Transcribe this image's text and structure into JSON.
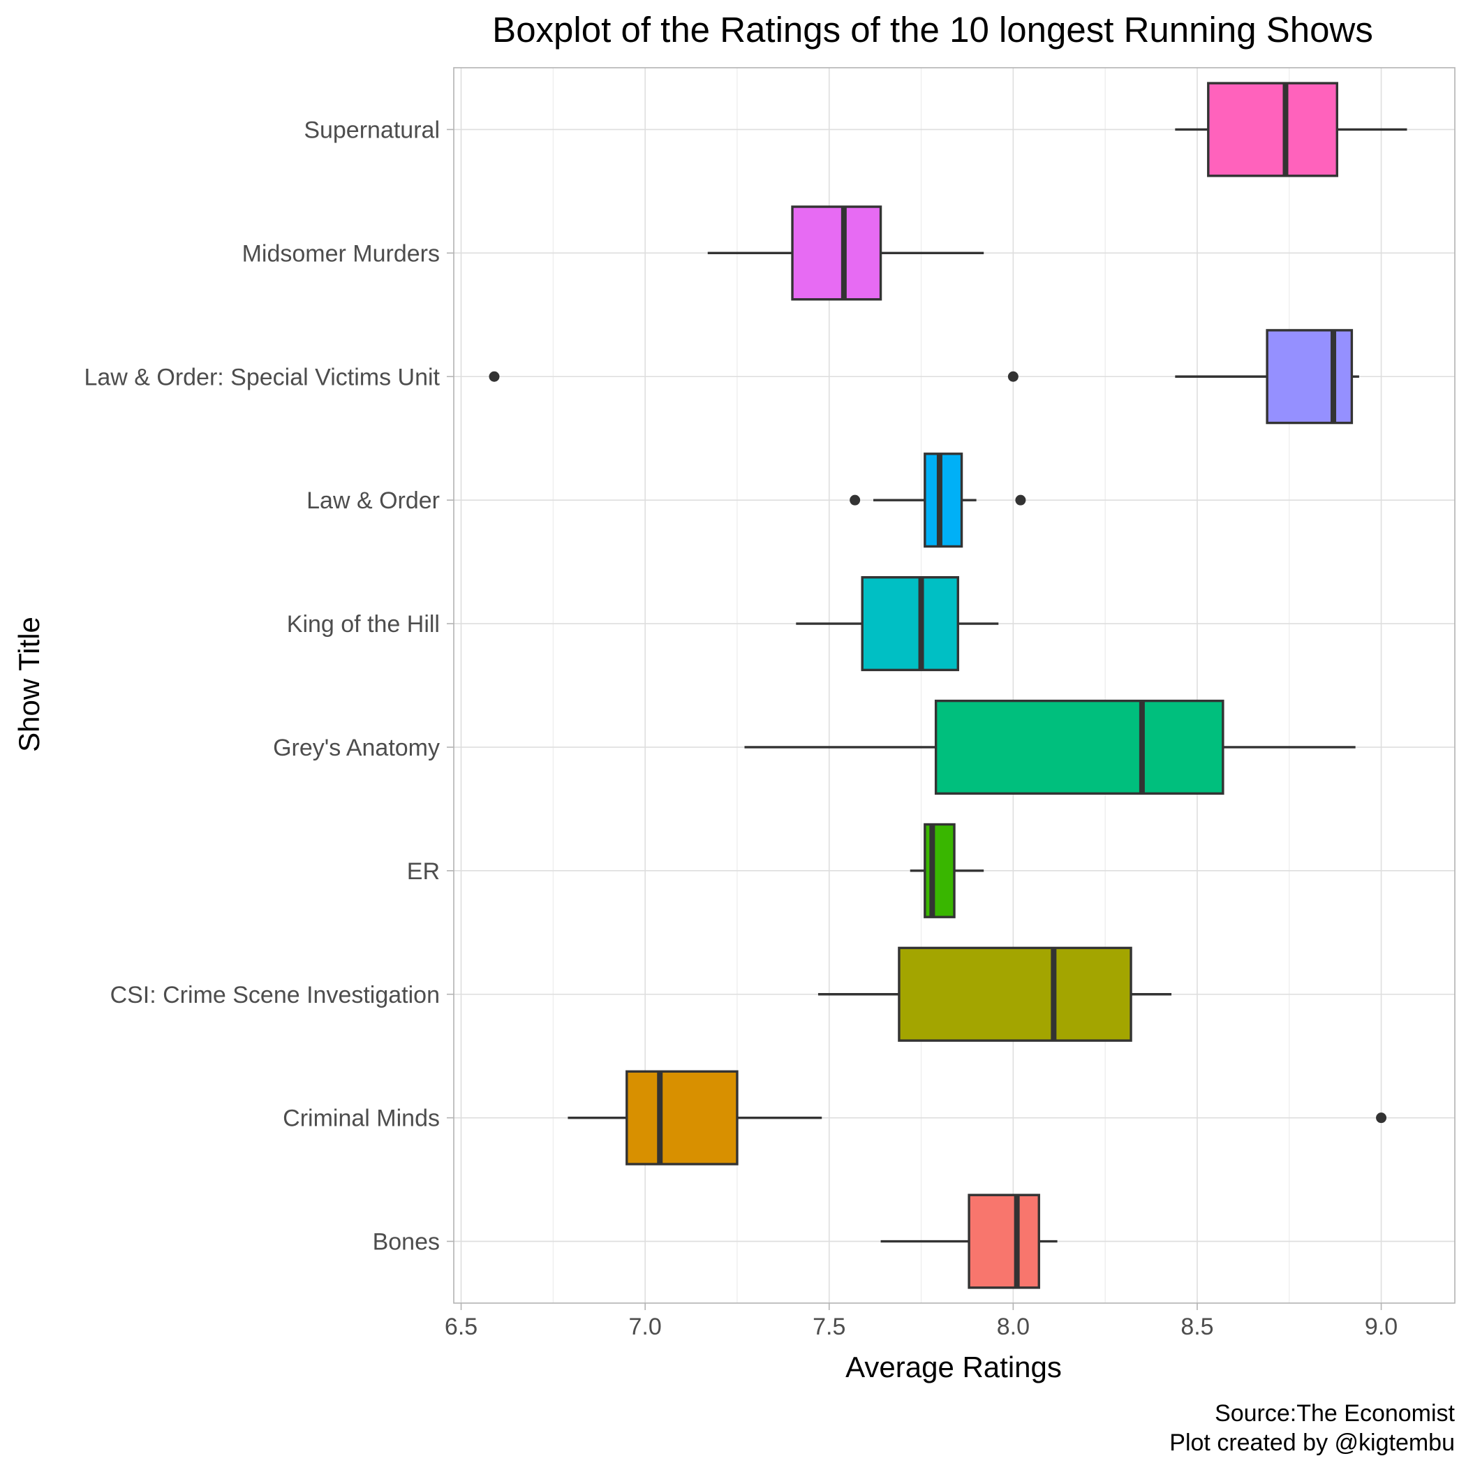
{
  "chart_data": {
    "type": "boxplot",
    "title": "Boxplot of the Ratings of the 10 longest Running Shows",
    "xlabel": "Average Ratings",
    "ylabel": "Show Title",
    "xlim": [
      6.48,
      9.2
    ],
    "x_ticks": [
      "6.5",
      "7.0",
      "7.5",
      "8.0",
      "8.5",
      "9.0"
    ],
    "x_tick_values": [
      6.5,
      7.0,
      7.5,
      8.0,
      8.5,
      9.0
    ],
    "grid": true,
    "legend": "none",
    "caption": [
      "Source:The Economist",
      "Plot created by @kigtembu"
    ],
    "series": [
      {
        "category": "Bones",
        "color": "#F8766D",
        "min": 7.64,
        "q1": 7.88,
        "median": 8.01,
        "q3": 8.07,
        "max": 8.12,
        "outliers": []
      },
      {
        "category": "Criminal Minds",
        "color": "#D89000",
        "min": 6.79,
        "q1": 6.95,
        "median": 7.04,
        "q3": 7.25,
        "max": 7.48,
        "outliers": [
          9.0
        ]
      },
      {
        "category": "CSI: Crime Scene Investigation",
        "color": "#A3A500",
        "min": 7.47,
        "q1": 7.69,
        "median": 8.11,
        "q3": 8.32,
        "max": 8.43,
        "outliers": []
      },
      {
        "category": "ER",
        "color": "#39B600",
        "min": 7.72,
        "q1": 7.76,
        "median": 7.78,
        "q3": 7.84,
        "max": 7.92,
        "outliers": []
      },
      {
        "category": "Grey's Anatomy",
        "color": "#00BF7D",
        "min": 7.27,
        "q1": 7.79,
        "median": 8.35,
        "q3": 8.57,
        "max": 8.93,
        "outliers": []
      },
      {
        "category": "King of the Hill",
        "color": "#00BFC4",
        "min": 7.41,
        "q1": 7.59,
        "median": 7.75,
        "q3": 7.85,
        "max": 7.96,
        "outliers": []
      },
      {
        "category": "Law & Order",
        "color": "#00B0F6",
        "min": 7.62,
        "q1": 7.76,
        "median": 7.8,
        "q3": 7.86,
        "max": 7.9,
        "outliers": [
          7.57,
          8.02
        ]
      },
      {
        "category": "Law & Order: Special Victims Unit",
        "color": "#9590FF",
        "min": 8.44,
        "q1": 8.69,
        "median": 8.87,
        "q3": 8.92,
        "max": 8.94,
        "outliers": [
          6.59,
          8.0
        ]
      },
      {
        "category": "Midsomer Murders",
        "color": "#E76BF3",
        "min": 7.17,
        "q1": 7.4,
        "median": 7.54,
        "q3": 7.64,
        "max": 7.92,
        "outliers": []
      },
      {
        "category": "Supernatural",
        "color": "#FF62BC",
        "min": 8.44,
        "q1": 8.53,
        "median": 8.74,
        "q3": 8.88,
        "max": 9.07,
        "outliers": []
      }
    ]
  }
}
